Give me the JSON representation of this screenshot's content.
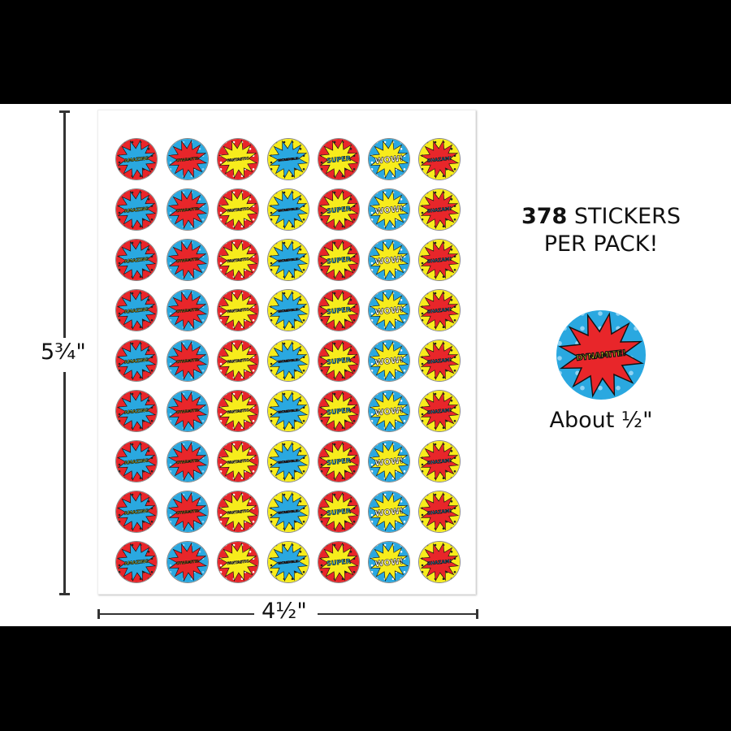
{
  "product": {
    "count": "378",
    "count_suffix": "STICKERS",
    "line2": "PER PACK!",
    "sample_caption": "About ½\"",
    "sample_sticker_word": "DYNAMITE!"
  },
  "dimensions": {
    "height_label": "5¾\"",
    "width_label": "4½\""
  },
  "sheet": {
    "rows": 9,
    "columns": 7,
    "sticker_types": [
      {
        "word": "AMAZING",
        "bg": "#e8262a",
        "burst": "#2aa8e0",
        "text": "#f7ec1c",
        "dots": "#222222"
      },
      {
        "word": "DYNAMITE!",
        "bg": "#2aa8e0",
        "burst": "#e8262a",
        "text": "#f7ec1c",
        "dots": "#8fd3f4"
      },
      {
        "word": "FANTASTIC",
        "bg": "#e8262a",
        "burst": "#f7ec1c",
        "text": "#ffffff",
        "dots": "#ffffff"
      },
      {
        "word": "INCREDIBLE!",
        "bg": "#f7ec1c",
        "burst": "#2aa8e0",
        "text": "#e8262a",
        "dots": "#222222"
      },
      {
        "word": "SUPER",
        "bg": "#e8262a",
        "burst": "#f7ec1c",
        "text": "#2aa8e0",
        "dots": "#222222"
      },
      {
        "word": "WOW!",
        "bg": "#2aa8e0",
        "burst": "#f7ec1c",
        "text": "#ffffff",
        "dots": "#ffffff"
      },
      {
        "word": "SHAZAM!",
        "bg": "#f7ec1c",
        "burst": "#e8262a",
        "text": "#2aa8e0",
        "dots": "#222222"
      }
    ]
  },
  "colors": {
    "band": "#000000",
    "red": "#e8262a",
    "blue": "#2aa8e0",
    "yellow": "#f7ec1c"
  }
}
